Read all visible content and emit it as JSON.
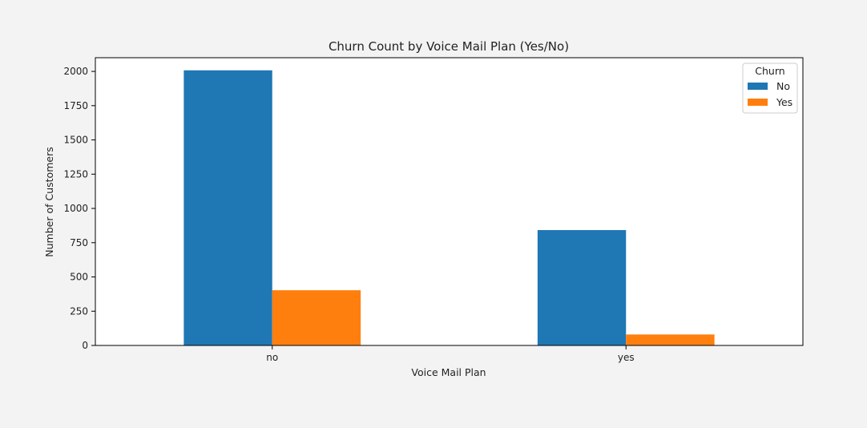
{
  "chart_data": {
    "type": "bar",
    "title": "Churn Count by Voice Mail Plan (Yes/No)",
    "xlabel": "Voice Mail Plan",
    "ylabel": "Number of Customers",
    "categories": [
      "no",
      "yes"
    ],
    "ylim": [
      0,
      2100
    ],
    "yticks": [
      0,
      250,
      500,
      750,
      1000,
      1250,
      1500,
      1750,
      2000
    ],
    "grid": false,
    "legend": {
      "title": "Churn",
      "placement": "top-right"
    },
    "series": [
      {
        "name": "No",
        "color": "#1f77b4",
        "values": [
          2008,
          842
        ]
      },
      {
        "name": "Yes",
        "color": "#ff7f0e",
        "values": [
          403,
          80
        ]
      }
    ]
  }
}
